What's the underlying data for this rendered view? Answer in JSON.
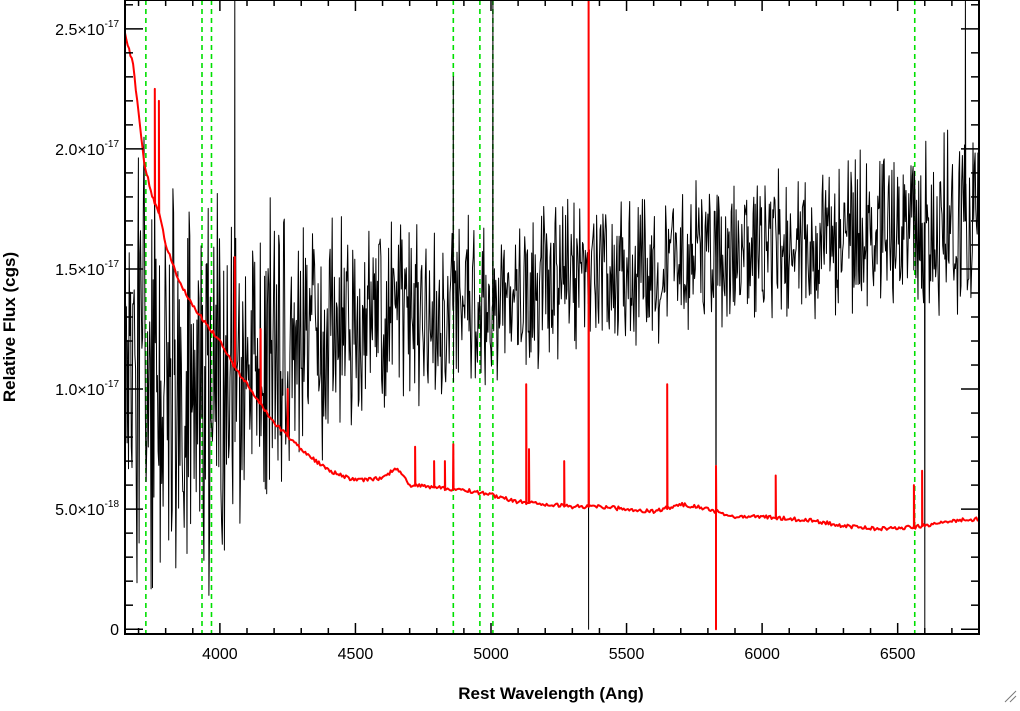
{
  "chart_data": {
    "type": "line",
    "title": "",
    "xlabel": "Rest Wavelength (Ang)",
    "ylabel": "Relative Flux (cgs)",
    "xlim": [
      3650,
      6800
    ],
    "ylim": [
      -0.02,
      2.62
    ],
    "y_unit_power": -17,
    "x_ticks": [
      {
        "value": 4000,
        "label": "4000"
      },
      {
        "value": 4500,
        "label": "4500"
      },
      {
        "value": 5000,
        "label": "5000"
      },
      {
        "value": 5500,
        "label": "5500"
      },
      {
        "value": 6000,
        "label": "6000"
      },
      {
        "value": 6500,
        "label": "6500"
      }
    ],
    "x_minor_step": 100,
    "y_ticks": [
      {
        "value": 0,
        "mantissa": "0",
        "exponent": ""
      },
      {
        "value": 0.5,
        "mantissa": "5.0×10",
        "exponent": "-18"
      },
      {
        "value": 1.0,
        "mantissa": "1.0×10",
        "exponent": "-17"
      },
      {
        "value": 1.5,
        "mantissa": "1.5×10",
        "exponent": "-17"
      },
      {
        "value": 2.0,
        "mantissa": "2.0×10",
        "exponent": "-17"
      },
      {
        "value": 2.5,
        "mantissa": "2.5×10",
        "exponent": "-17"
      }
    ],
    "y_minor_step": 0.1,
    "grid": false,
    "legend": "none",
    "vertical_markers": {
      "color": "#00e000",
      "style": "dashed",
      "x": [
        3727,
        3934,
        3969,
        4861,
        4959,
        5007,
        6563
      ]
    },
    "series": [
      {
        "color": "#000000",
        "noisy": true,
        "x": [
          3650,
          3700,
          3750,
          3800,
          3850,
          3900,
          3950,
          4000,
          4100,
          4200,
          4300,
          4400,
          4500,
          4600,
          4700,
          4800,
          4900,
          5000,
          5100,
          5200,
          5300,
          5400,
          5500,
          5600,
          5700,
          5800,
          5900,
          6000,
          6100,
          6200,
          6300,
          6400,
          6500,
          6600,
          6700,
          6800
        ],
        "values": [
          1.2,
          1.05,
          1.0,
          0.95,
          0.95,
          0.95,
          1.0,
          1.05,
          1.1,
          1.15,
          1.2,
          1.25,
          1.25,
          1.3,
          1.3,
          1.3,
          1.35,
          1.35,
          1.4,
          1.4,
          1.45,
          1.45,
          1.5,
          1.5,
          1.55,
          1.55,
          1.55,
          1.6,
          1.6,
          1.6,
          1.65,
          1.65,
          1.65,
          1.65,
          1.7,
          1.7
        ],
        "scatter": [
          0.6,
          0.9,
          0.9,
          0.8,
          0.75,
          0.7,
          0.7,
          0.65,
          0.55,
          0.5,
          0.45,
          0.4,
          0.38,
          0.35,
          0.33,
          0.3,
          0.3,
          0.3,
          0.28,
          0.28,
          0.28,
          0.28,
          0.25,
          0.25,
          0.25,
          0.25,
          0.25,
          0.25,
          0.25,
          0.25,
          0.25,
          0.28,
          0.28,
          0.3,
          0.35,
          0.35
        ],
        "spikes": [
          {
            "x": 4055,
            "y": 2.62
          },
          {
            "x": 4861,
            "y": 2.3
          },
          {
            "x": 5007,
            "y": 2.62
          },
          {
            "x": 5360,
            "y": 0.0
          },
          {
            "x": 5360,
            "y": 2.62
          },
          {
            "x": 5830,
            "y": 0.0
          },
          {
            "x": 6600,
            "y": 0.0
          },
          {
            "x": 6750,
            "y": 2.62
          }
        ]
      },
      {
        "color": "#ff0000",
        "noisy": false,
        "x": [
          3650,
          3680,
          3700,
          3720,
          3750,
          3780,
          3800,
          3850,
          3900,
          3950,
          4000,
          4050,
          4100,
          4150,
          4200,
          4300,
          4400,
          4500,
          4600,
          4650,
          4700,
          4800,
          4900,
          5000,
          5100,
          5200,
          5300,
          5400,
          5500,
          5600,
          5700,
          5800,
          5900,
          6000,
          6100,
          6200,
          6300,
          6400,
          6500,
          6600,
          6700,
          6800
        ],
        "values": [
          2.48,
          2.35,
          2.15,
          1.95,
          1.8,
          1.72,
          1.6,
          1.45,
          1.35,
          1.27,
          1.2,
          1.1,
          1.02,
          0.94,
          0.86,
          0.75,
          0.66,
          0.62,
          0.63,
          0.67,
          0.6,
          0.59,
          0.58,
          0.56,
          0.53,
          0.52,
          0.51,
          0.51,
          0.5,
          0.49,
          0.52,
          0.5,
          0.47,
          0.47,
          0.46,
          0.45,
          0.43,
          0.42,
          0.42,
          0.43,
          0.45,
          0.46
        ],
        "spikes": [
          {
            "x": 3760,
            "y": 2.25
          },
          {
            "x": 3775,
            "y": 2.2
          },
          {
            "x": 4055,
            "y": 1.55
          },
          {
            "x": 4150,
            "y": 1.25
          },
          {
            "x": 4250,
            "y": 1.0
          },
          {
            "x": 4720,
            "y": 0.76
          },
          {
            "x": 4790,
            "y": 0.7
          },
          {
            "x": 4830,
            "y": 0.7
          },
          {
            "x": 4861,
            "y": 0.77
          },
          {
            "x": 5130,
            "y": 1.02
          },
          {
            "x": 5140,
            "y": 0.75
          },
          {
            "x": 5270,
            "y": 0.7
          },
          {
            "x": 5360,
            "y": 2.62
          },
          {
            "x": 5650,
            "y": 1.02
          },
          {
            "x": 5830,
            "y": 0.0
          },
          {
            "x": 5830,
            "y": 0.68
          },
          {
            "x": 6050,
            "y": 0.64
          },
          {
            "x": 6560,
            "y": 0.6
          },
          {
            "x": 6590,
            "y": 0.66
          }
        ]
      }
    ]
  }
}
